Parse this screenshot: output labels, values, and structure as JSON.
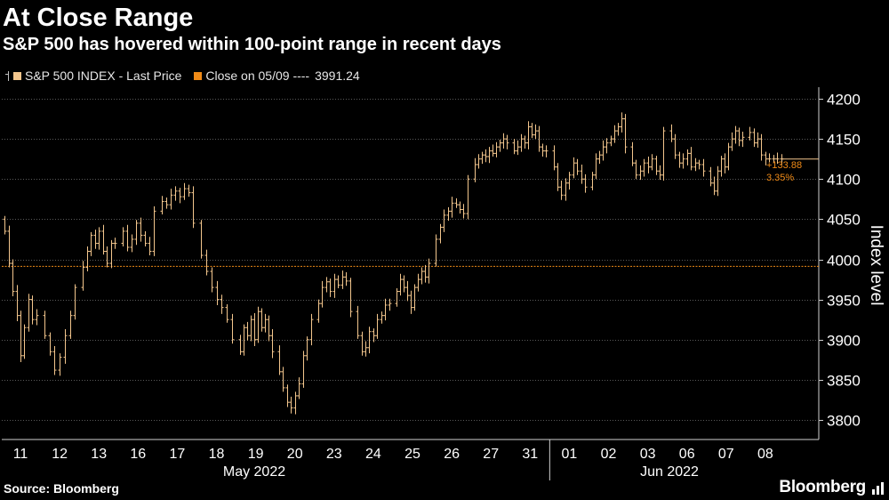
{
  "header": {
    "title": "At Close Range",
    "subtitle": "S&P 500 has hovered within 100-point range in recent days"
  },
  "legend": {
    "series_label": "S&P 500 INDEX - Last Price",
    "reference_label": "Close on 05/09 ----",
    "reference_value": "3991.24"
  },
  "footer": {
    "source": "Source: Bloomberg",
    "brand": "Bloomberg"
  },
  "colors": {
    "background": "#000000",
    "series": "#f3c68d",
    "reference": "#ef8a17",
    "grid": "#5a5a5a",
    "text": "#ffffff"
  },
  "chart_data": {
    "type": "ohlc-line",
    "title": "At Close Range",
    "subtitle": "S&P 500 has hovered within 100-point range in recent days",
    "ylabel": "Index level",
    "ylim": [
      3780,
      4210
    ],
    "yticks": [
      3800,
      3850,
      3900,
      3950,
      4000,
      4050,
      4100,
      4150,
      4200
    ],
    "yaxis_side": "right",
    "grid": "horizontal dotted",
    "x_tick_labels": [
      "11",
      "12",
      "13",
      "16",
      "17",
      "18",
      "19",
      "20",
      "23",
      "24",
      "25",
      "26",
      "27",
      "31",
      "01",
      "02",
      "03",
      "06",
      "07",
      "08"
    ],
    "x_group_labels": [
      "May 2022",
      "Jun 2022"
    ],
    "reference_line": {
      "label": "Close on 05/09",
      "value": 3991.24
    },
    "annotation": {
      "change": "+133.88",
      "percent": "3.35%"
    },
    "days": [
      {
        "label": "11",
        "prices": [
          4050,
          4035,
          3995,
          3960,
          3930,
          3880,
          3915,
          3950,
          3925
        ]
      },
      {
        "label": "12",
        "prices": [
          3930,
          3905,
          3885,
          3862,
          3878,
          3905,
          3930
        ]
      },
      {
        "label": "13",
        "prices": [
          3965,
          3990,
          4010,
          4030,
          4020,
          4035,
          4010,
          3995,
          4020
        ]
      },
      {
        "label": "16",
        "prices": [
          4020,
          4035,
          4015,
          4025,
          4045,
          4030,
          4020,
          4010
        ]
      },
      {
        "label": "17",
        "prices": [
          4060,
          4072,
          4068,
          4080,
          4085,
          4078,
          4088,
          4083
        ]
      },
      {
        "label": "18",
        "prices": [
          4045,
          4005,
          3985,
          3965,
          3950,
          3940,
          3925
        ]
      },
      {
        "label": "19",
        "prices": [
          3900,
          3885,
          3915,
          3905,
          3925,
          3900,
          3935,
          3915,
          3925,
          3905
        ]
      },
      {
        "label": "20",
        "prices": [
          3885,
          3860,
          3840,
          3822,
          3815,
          3830,
          3845,
          3880,
          3900
        ]
      },
      {
        "label": "23",
        "prices": [
          3925,
          3945,
          3965,
          3972,
          3960,
          3975,
          3968,
          3978,
          3973
        ]
      },
      {
        "label": "24",
        "prices": [
          3935,
          3905,
          3885,
          3890,
          3910,
          3905,
          3925,
          3930,
          3943
        ]
      },
      {
        "label": "25",
        "prices": [
          3945,
          3960,
          3975,
          3965,
          3955,
          3940,
          3965,
          3975,
          3985,
          3978
        ]
      },
      {
        "label": "26",
        "prices": [
          3995,
          4025,
          4040,
          4055,
          4060,
          4070,
          4068,
          4062,
          4057
        ]
      },
      {
        "label": "27",
        "prices": [
          4100,
          4118,
          4125,
          4130,
          4128,
          4135,
          4132,
          4140,
          4145,
          4150
        ]
      },
      {
        "label": "31",
        "prices": [
          4145,
          4135,
          4140,
          4150,
          4145,
          4165,
          4155,
          4160,
          4140,
          4135
        ]
      },
      {
        "label": "01",
        "prices": [
          4135,
          4115,
          4090,
          4080,
          4095,
          4105,
          4120,
          4110,
          4100
        ]
      },
      {
        "label": "02",
        "prices": [
          4090,
          4105,
          4125,
          4130,
          4140,
          4145,
          4150,
          4160,
          4165,
          4175
        ]
      },
      {
        "label": "03",
        "prices": [
          4140,
          4120,
          4105,
          4110,
          4120,
          4115,
          4125,
          4110,
          4105
        ]
      },
      {
        "label": "06",
        "prices": [
          4160,
          4150,
          4130,
          4120,
          4125,
          4132,
          4115,
          4120,
          4118
        ]
      },
      {
        "label": "07",
        "prices": [
          4110,
          4095,
          4085,
          4110,
          4125,
          4115,
          4140,
          4150,
          4160,
          4148
        ]
      },
      {
        "label": "08",
        "prices": [
          4152,
          4158,
          4145,
          4150,
          4130,
          4125,
          4125,
          4125,
          4125
        ]
      }
    ]
  }
}
